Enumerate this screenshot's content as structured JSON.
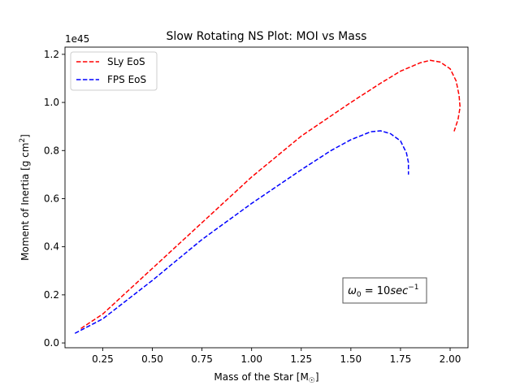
{
  "chart_data": {
    "type": "line",
    "title": "Slow Rotating NS Plot: MOI vs Mass",
    "xlabel": "Mass of the Star [M",
    "xlabel_sub": "☉",
    "xlabel_end": "]",
    "ylabel": "Moment of Inertia [g cm",
    "ylabel_sup": "2",
    "ylabel_end": "]",
    "y_offset_label": "1e45",
    "xlim": [
      0.06,
      2.09
    ],
    "ylim": [
      -0.02,
      1.23
    ],
    "x_ticks": [
      0.25,
      0.5,
      0.75,
      1.0,
      1.25,
      1.5,
      1.75,
      2.0
    ],
    "x_tick_labels": [
      "0.25",
      "0.50",
      "0.75",
      "1.00",
      "1.25",
      "1.50",
      "1.75",
      "2.00"
    ],
    "y_ticks": [
      0.0,
      0.2,
      0.4,
      0.6,
      0.8,
      1.0,
      1.2
    ],
    "y_tick_labels": [
      "0.0",
      "0.2",
      "0.4",
      "0.6",
      "0.8",
      "1.0",
      "1.2"
    ],
    "grid": false,
    "legend_position": "top-left",
    "annotation": {
      "omega": "ω",
      "sub": "0",
      "eq": " = 10",
      "unit": "sec",
      "sup": "−1"
    },
    "series": [
      {
        "name": "SLy EoS",
        "color": "#ff0000",
        "line_style": "dashed",
        "points": [
          [
            0.14,
            0.06
          ],
          [
            0.25,
            0.12
          ],
          [
            0.5,
            0.31
          ],
          [
            0.75,
            0.5
          ],
          [
            1.0,
            0.69
          ],
          [
            1.25,
            0.86
          ],
          [
            1.5,
            1.0
          ],
          [
            1.65,
            1.08
          ],
          [
            1.75,
            1.13
          ],
          [
            1.85,
            1.165
          ],
          [
            1.9,
            1.175
          ],
          [
            1.95,
            1.168
          ],
          [
            2.0,
            1.14
          ],
          [
            2.03,
            1.09
          ],
          [
            2.045,
            1.03
          ],
          [
            2.05,
            0.98
          ],
          [
            2.04,
            0.93
          ],
          [
            2.02,
            0.88
          ]
        ]
      },
      {
        "name": "FPS EoS",
        "color": "#0000ff",
        "line_style": "dashed",
        "points": [
          [
            0.11,
            0.04
          ],
          [
            0.25,
            0.1
          ],
          [
            0.5,
            0.26
          ],
          [
            0.75,
            0.43
          ],
          [
            1.0,
            0.58
          ],
          [
            1.25,
            0.72
          ],
          [
            1.4,
            0.8
          ],
          [
            1.5,
            0.845
          ],
          [
            1.6,
            0.878
          ],
          [
            1.65,
            0.882
          ],
          [
            1.7,
            0.87
          ],
          [
            1.75,
            0.84
          ],
          [
            1.78,
            0.79
          ],
          [
            1.79,
            0.75
          ],
          [
            1.79,
            0.7
          ]
        ]
      }
    ]
  }
}
